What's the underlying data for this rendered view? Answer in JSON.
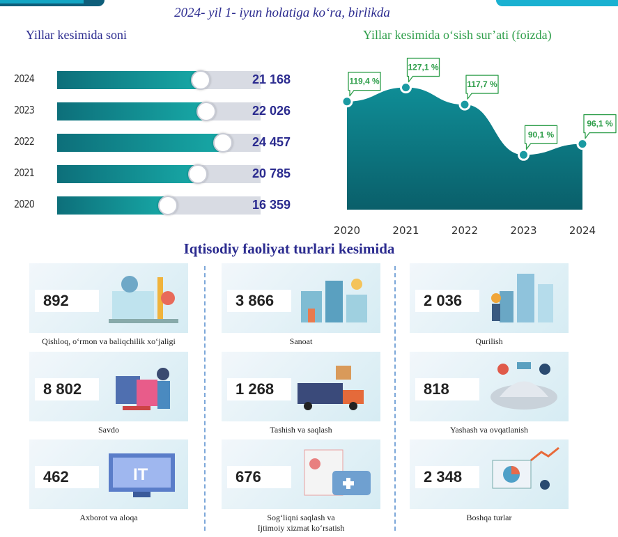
{
  "header": {
    "title": "2024- yil 1- iyun holatiga ko‘ra, birlikda"
  },
  "bars": {
    "title": "Yillar kesimida soni",
    "rows": [
      {
        "year": "2024",
        "value": 21168,
        "label": "21 168"
      },
      {
        "year": "2023",
        "value": 22026,
        "label": "22 026"
      },
      {
        "year": "2022",
        "value": 24457,
        "label": "24 457"
      },
      {
        "year": "2021",
        "value": 20785,
        "label": "20 785"
      },
      {
        "year": "2020",
        "value": 16359,
        "label": "16 359"
      }
    ]
  },
  "line": {
    "title": "Yillar kesimida o‘sish sur’ati (foizda)",
    "years": [
      "2020",
      "2021",
      "2022",
      "2023",
      "2024"
    ],
    "labels": [
      "119,4 %",
      "127,1 %",
      "117,7 %",
      "90,1 %",
      "96,1 %"
    ]
  },
  "chart_data": [
    {
      "type": "bar",
      "title": "Yillar kesimida soni",
      "categories": [
        "2024",
        "2023",
        "2022",
        "2021",
        "2020"
      ],
      "values": [
        21168,
        22026,
        24457,
        20785,
        16359
      ]
    },
    {
      "type": "area",
      "title": "Yillar kesimida o‘sish sur’ati (foizda)",
      "x": [
        "2020",
        "2021",
        "2022",
        "2023",
        "2024"
      ],
      "values": [
        119.4,
        127.1,
        117.7,
        90.1,
        96.1
      ],
      "grid": false
    }
  ],
  "activities": {
    "title": "Iqtisodiy faoliyat turlari kesimida",
    "items": [
      {
        "value": "892",
        "caption": "Qishloq, o‘rmon va baliqchilik xo‘jaligi",
        "icon": "agriculture-illustration"
      },
      {
        "value": "3 866",
        "caption": "Sanoat",
        "icon": "industry-illustration"
      },
      {
        "value": "2 036",
        "caption": "Qurilish",
        "icon": "construction-illustration"
      },
      {
        "value": "8 802",
        "caption": "Savdo",
        "icon": "trade-illustration"
      },
      {
        "value": "1 268",
        "caption": "Tashish va saqlash",
        "icon": "transport-illustration"
      },
      {
        "value": "818",
        "caption": "Yashash va ovqatlanish",
        "icon": "hospitality-illustration"
      },
      {
        "value": "462",
        "caption": "Axborot va aloqa",
        "icon": "it-illustration"
      },
      {
        "value": "676",
        "caption": "Sog‘liqni saqlash va\nIjtimoiy xizmat ko‘rsatish",
        "icon": "health-illustration"
      },
      {
        "value": "2 348",
        "caption": "Boshqa turlar",
        "icon": "other-illustration"
      }
    ]
  },
  "colors": {
    "teal": "#0f7f87",
    "title_blue": "#2b2b8f",
    "green": "#2e9e4a",
    "track": "#d8dbe3"
  }
}
